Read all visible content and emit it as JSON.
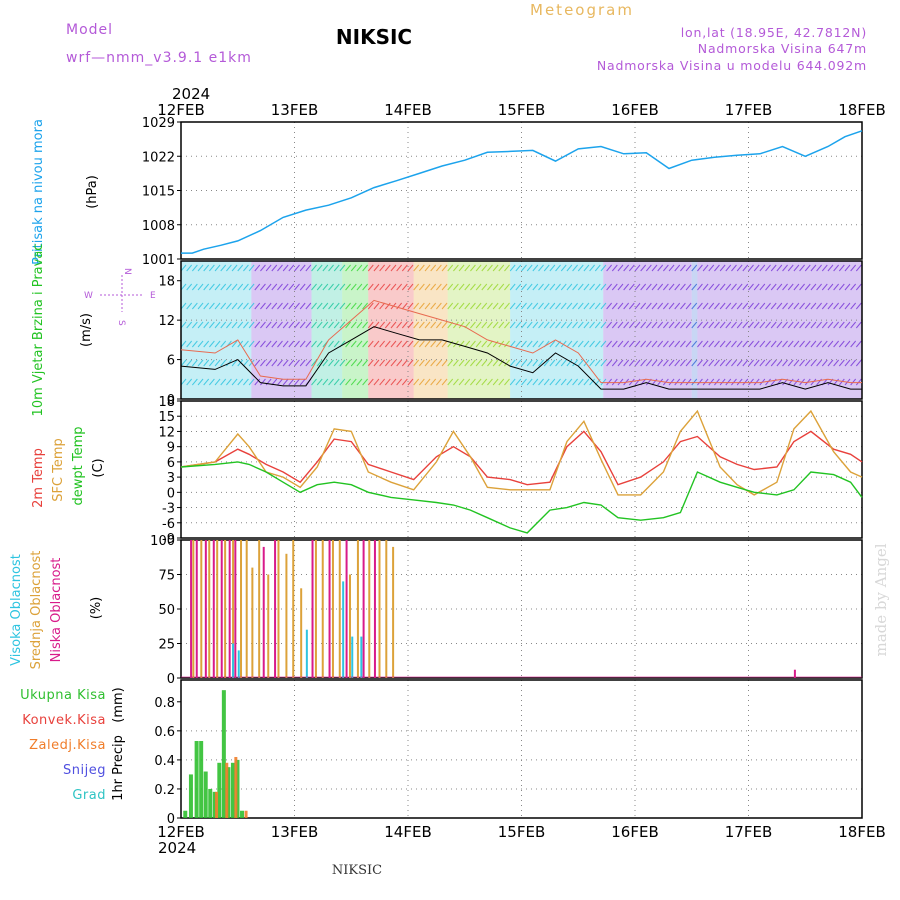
{
  "header": {
    "model_label": "Model",
    "model_value": "wrf—nmm_v3.9.1  e1km",
    "title": "NIKSIC",
    "meteogram_label": "Meteogram",
    "coords": "lon,lat (18.95E, 42.7812N)",
    "elevation": "Nadmorska Visina 647m",
    "model_elevation": "Nadmorska Visina u modelu 644.092m",
    "year_top": "2024",
    "year_bottom": "2024",
    "footer": "NIKSIC",
    "credit": "made by Angel"
  },
  "colors": {
    "pressure": "#1ca3ec",
    "temp2m": "#e8413c",
    "sfc_temp": "#dca23a",
    "dewpoint": "#22c322",
    "high_cloud": "#2ec4e0",
    "mid_cloud": "#dca23a",
    "low_cloud": "#d81b8a",
    "total_precip": "#2fbf2f",
    "conv_precip": "#e8413c",
    "frozen_precip": "#f07d2a",
    "snow": "#5050e0",
    "hail": "#2ec4c4",
    "model_label": "#b45ad8",
    "meteogram": "#e8b860",
    "wind_dir": "#b45ad8"
  },
  "chart_data": [
    {
      "type": "line",
      "panel": "pressure",
      "ylabel": "Pritisak na nivou mora",
      "unit": "(hPa)",
      "ylim": [
        1001,
        1029
      ],
      "yticks": [
        1001,
        1008,
        1015,
        1022,
        1029
      ],
      "x": [
        0,
        0.1,
        0.2,
        0.35,
        0.5,
        0.7,
        0.9,
        1.1,
        1.3,
        1.5,
        1.7,
        1.9,
        2.1,
        2.3,
        2.5,
        2.7,
        2.9,
        3.1,
        3.3,
        3.5,
        3.7,
        3.9,
        4.1,
        4.3,
        4.5,
        4.7,
        4.9,
        5.1,
        5.3,
        5.5,
        5.7,
        5.85,
        6.0
      ],
      "values": [
        1002.2,
        1002.2,
        1003,
        1003.8,
        1004.7,
        1006.8,
        1009.5,
        1011,
        1012,
        1013.5,
        1015.6,
        1017,
        1018.5,
        1020,
        1021.2,
        1022.8,
        1023,
        1023.2,
        1021,
        1023.5,
        1024,
        1022.5,
        1022.7,
        1019.5,
        1021.2,
        1021.8,
        1022.2,
        1022.5,
        1024,
        1022,
        1024,
        1026,
        1027.2
      ]
    },
    {
      "type": "line",
      "panel": "wind",
      "ylabel": "10m Vjetar Brzina i Pravac",
      "unit": "(m/s)",
      "ylim": [
        0,
        21
      ],
      "yticks": [
        0,
        6,
        12,
        18
      ],
      "direction_key": {
        "n": "N",
        "s": "S",
        "e": "E",
        "w": "W"
      },
      "series": [
        {
          "x": [
            0,
            0.3,
            0.5,
            0.7,
            0.9,
            1.1,
            1.3,
            1.5,
            1.7,
            1.9,
            2.1,
            2.3,
            2.5,
            2.7,
            2.9,
            3.1,
            3.3,
            3.5,
            3.7,
            3.9,
            4.1,
            4.3,
            4.5,
            4.7,
            4.9,
            5.1,
            5.3,
            5.5,
            5.7,
            5.9,
            6.0
          ],
          "values": [
            5,
            4.5,
            6,
            2.5,
            2,
            2,
            7,
            9,
            11,
            10,
            9,
            9,
            8,
            7,
            5,
            4,
            7,
            5,
            1.5,
            1.5,
            2.5,
            1.5,
            1.5,
            1.5,
            1.5,
            1.5,
            2.5,
            1.5,
            2.5,
            1.5,
            1.5
          ]
        },
        {
          "x": [
            0,
            0.3,
            0.5,
            0.7,
            0.9,
            1.1,
            1.3,
            1.5,
            1.7,
            1.9,
            2.1,
            2.3,
            2.5,
            2.7,
            2.9,
            3.1,
            3.3,
            3.5,
            3.7,
            3.9,
            4.1,
            4.3,
            4.5,
            4.7,
            4.9,
            5.1,
            5.3,
            5.5,
            5.7,
            5.9,
            6.0
          ],
          "values": [
            7.5,
            7,
            9,
            3.5,
            3,
            3,
            9,
            12,
            15,
            14,
            13,
            12,
            11,
            9,
            8,
            7,
            9,
            7,
            2.5,
            2.5,
            3,
            2.5,
            2.5,
            2.5,
            2.5,
            2.5,
            3,
            2.5,
            3,
            2.5,
            2.5
          ]
        }
      ]
    },
    {
      "type": "line",
      "panel": "temperature",
      "ylabel": "2m Temp",
      "ylabel2": "SFC Temp",
      "ylabel3": "dewpt Temp",
      "unit": "(C)",
      "ylim": [
        -9,
        18
      ],
      "yticks": [
        -9,
        -6,
        -3,
        0,
        3,
        6,
        9,
        12,
        15,
        18
      ],
      "x": [
        0,
        0.3,
        0.5,
        0.6,
        0.75,
        0.9,
        1.05,
        1.2,
        1.35,
        1.5,
        1.65,
        1.85,
        2.05,
        2.25,
        2.4,
        2.55,
        2.7,
        2.9,
        3.05,
        3.25,
        3.4,
        3.55,
        3.7,
        3.85,
        4.05,
        4.25,
        4.4,
        4.55,
        4.75,
        4.9,
        5.05,
        5.25,
        5.4,
        5.55,
        5.75,
        5.9,
        6.0
      ],
      "series": [
        {
          "name": "2m Temp",
          "values": [
            5,
            6,
            8.5,
            7.5,
            5.5,
            4,
            2,
            6,
            10.5,
            10,
            5.5,
            4,
            2.5,
            7,
            9,
            7,
            3,
            2.5,
            1.5,
            2,
            9,
            12,
            8,
            1.5,
            3,
            6,
            10,
            11,
            7,
            5.5,
            4.5,
            5,
            10,
            12,
            8.5,
            7.5,
            6
          ]
        },
        {
          "name": "SFC Temp",
          "values": [
            5,
            6,
            11.5,
            9,
            4,
            3,
            1,
            5,
            12.5,
            12,
            4,
            2,
            0.5,
            6,
            12,
            7,
            1,
            0.5,
            0.5,
            0.5,
            10,
            14,
            6.5,
            -0.5,
            -0.5,
            4,
            12,
            16,
            5,
            1.5,
            -0.5,
            2,
            12.5,
            16,
            8,
            4,
            3
          ]
        },
        {
          "name": "dewpt Temp",
          "values": [
            5,
            5.5,
            6,
            5.5,
            4,
            2,
            0,
            1.5,
            2,
            1.5,
            0,
            -1,
            -1.5,
            -2,
            -2.5,
            -3.5,
            -5,
            -7,
            -8,
            -3.5,
            -3,
            -2,
            -2.5,
            -5,
            -5.5,
            -5,
            -4,
            4,
            2,
            1,
            0,
            -0.5,
            0.5,
            4,
            3.5,
            2,
            -1
          ]
        }
      ]
    },
    {
      "type": "bar",
      "panel": "cloud",
      "ylabel": "Visoka Oblacnost",
      "ylabel2": "Srednja Oblacnost",
      "ylabel3": "Niska Oblacnost",
      "unit": "(%)",
      "ylim": [
        0,
        100
      ],
      "yticks": [
        0,
        25,
        50,
        75,
        100
      ],
      "series": [
        {
          "name": "Niska Oblacnost",
          "x": [
            0.08,
            0.13,
            0.21,
            0.28,
            0.35,
            0.42,
            0.47,
            0.72,
            0.82,
            1.15,
            1.3,
            1.45,
            1.6,
            1.7,
            5.4
          ],
          "values": [
            100,
            100,
            100,
            100,
            100,
            100,
            100,
            95,
            100,
            100,
            100,
            100,
            100,
            100,
            6
          ]
        },
        {
          "name": "Srednja Oblacnost",
          "x": [
            0.1,
            0.17,
            0.24,
            0.31,
            0.38,
            0.45,
            0.52,
            0.57,
            0.62,
            0.68,
            0.76,
            0.85,
            0.92,
            0.98,
            1.05,
            1.18,
            1.24,
            1.33,
            1.39,
            1.48,
            1.55,
            1.65,
            1.74,
            1.8,
            1.86
          ],
          "values": [
            100,
            100,
            100,
            100,
            100,
            100,
            100,
            100,
            80,
            100,
            75,
            100,
            90,
            100,
            65,
            100,
            100,
            100,
            100,
            75,
            100,
            100,
            100,
            100,
            95
          ]
        },
        {
          "name": "Visoka Oblacnost",
          "x": [
            0.45,
            0.5,
            1.1,
            1.42,
            1.5,
            1.58
          ],
          "values": [
            25,
            20,
            35,
            70,
            30,
            30
          ]
        }
      ]
    },
    {
      "type": "bar",
      "panel": "precip",
      "ylabel": "1hr Precip",
      "unit": "(mm)",
      "ylim": [
        0,
        0.95
      ],
      "yticks": [
        0,
        0.2,
        0.4,
        0.6,
        0.8
      ],
      "legend": [
        "Ukupna Kisa",
        "Konvek.Kisa",
        "Zaledj.Kisa",
        "Snijeg",
        "Grad"
      ],
      "series": [
        {
          "name": "Ukupna Kisa",
          "x": [
            0.02,
            0.07,
            0.12,
            0.16,
            0.2,
            0.24,
            0.28,
            0.32,
            0.36,
            0.4,
            0.44,
            0.48,
            0.52
          ],
          "values": [
            0.05,
            0.3,
            0.53,
            0.53,
            0.32,
            0.2,
            0.18,
            0.38,
            0.88,
            0.35,
            0.38,
            0.4,
            0.05
          ]
        },
        {
          "name": "Zaledj.Kisa",
          "x": [
            0.3,
            0.39,
            0.47,
            0.56
          ],
          "values": [
            0.18,
            0.38,
            0.42,
            0.05
          ]
        }
      ]
    }
  ],
  "x_axis": {
    "labels": [
      "12FEB",
      "13FEB",
      "14FEB",
      "15FEB",
      "16FEB",
      "17FEB",
      "18FEB"
    ]
  }
}
